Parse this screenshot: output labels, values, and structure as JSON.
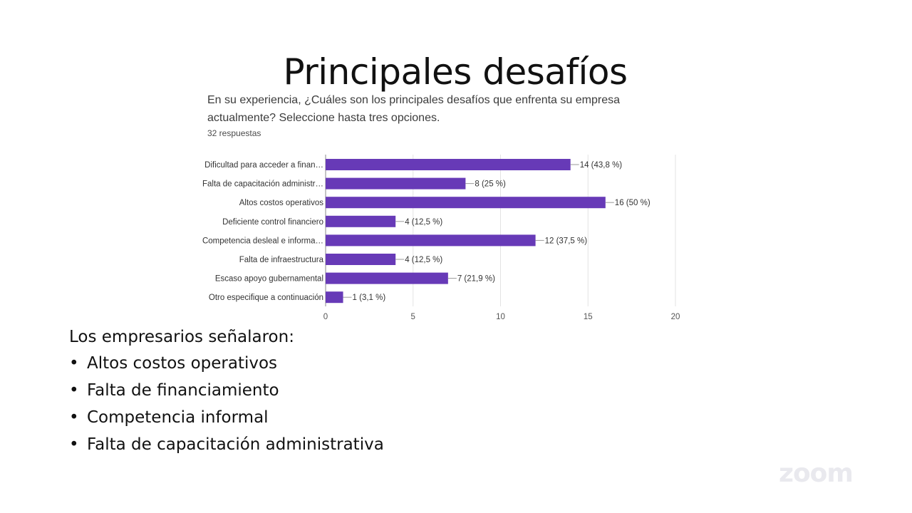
{
  "slide": {
    "title": "Principales desafíos"
  },
  "question": {
    "text": "En su experiencia, ¿Cuáles son los principales desafíos que enfrenta su empresa actualmente? Seleccione hasta tres opciones.",
    "responses": "32 respuestas"
  },
  "chart_data": {
    "type": "bar",
    "orientation": "horizontal",
    "categories": [
      "Dificultad para acceder a finan…",
      "Falta de capacitación administr…",
      "Altos costos operativos",
      "Deficiente control financiero",
      "Competencia desleal e informa…",
      "Falta de infraestructura",
      "Escaso apoyo gubernamental",
      "Otro especifique a continuación"
    ],
    "values": [
      14,
      8,
      16,
      4,
      12,
      4,
      7,
      1
    ],
    "data_labels": [
      "14 (43,8 %)",
      "8 (25 %)",
      "16 (50 %)",
      "4 (12,5 %)",
      "12 (37,5 %)",
      "4 (12,5 %)",
      "7 (21,9 %)",
      "1 (3,1 %)"
    ],
    "xticks": [
      0,
      5,
      10,
      15,
      20
    ],
    "xtick_labels": [
      "0",
      "5",
      "10",
      "15",
      "20"
    ],
    "xlim": [
      0,
      20
    ],
    "grid": true,
    "bar_color": "#673ab7"
  },
  "summary": {
    "intro": "Los empresarios señalaron:",
    "bullet_char": "•",
    "items": [
      "Altos costos operativos",
      "Falta de financiamiento",
      "Competencia informal",
      "Falta de capacitación administrativa"
    ]
  },
  "watermark": {
    "logo_text": "zoom"
  }
}
